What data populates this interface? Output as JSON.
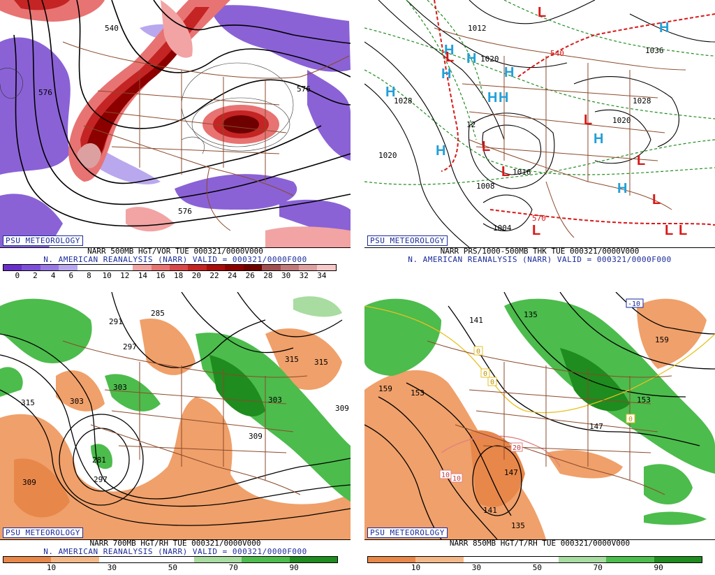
{
  "panels": [
    {
      "id": "vor500",
      "brand": "PSU METEOROLOGY",
      "title_line": "NARR 500MB HGT/VOR TUE 000321/0000V000",
      "valid_line": "N. AMERICAN REANALYSIS (NARR) VALID = 000321/0000F000",
      "contour_labels": [
        "540",
        "576",
        "576",
        "576"
      ],
      "colorbar": {
        "ticks": [
          "0",
          "2",
          "4",
          "6",
          "8",
          "10",
          "12",
          "14",
          "16",
          "18",
          "20",
          "22",
          "24",
          "26",
          "28",
          "30",
          "32",
          "34"
        ],
        "colors": [
          "#6a2fc8",
          "#7d4fd8",
          "#9a78e4",
          "#b9a8ee",
          "#ffffff",
          "#ffffff",
          "#ffffff",
          "#f2a3a3",
          "#e87373",
          "#d94848",
          "#c42424",
          "#a80c0c",
          "#8c0000",
          "#6e0000",
          "#a05050",
          "#c07a7a",
          "#dca0a0",
          "#f6c8c8"
        ]
      }
    },
    {
      "id": "prs",
      "brand": "PSU METEOROLOGY",
      "title_line": "NARR PRS/1000-500MB THK TUE 000321/0000V000",
      "valid_line": "N. AMERICAN REANALYSIS (NARR) VALID = 000321/0000F000",
      "isobar_labels": [
        "1012",
        "1020",
        "1028",
        "1020",
        "1036",
        "1028",
        "1020",
        "1016",
        "1008",
        "1004",
        "540",
        "570",
        "12"
      ],
      "centers": [
        {
          "type": "H",
          "color": "#22a0d8"
        },
        {
          "type": "H",
          "color": "#22a0d8"
        },
        {
          "type": "H",
          "color": "#22a0d8"
        },
        {
          "type": "H",
          "color": "#22a0d8"
        },
        {
          "type": "H",
          "color": "#22a0d8"
        },
        {
          "type": "H",
          "color": "#22a0d8"
        },
        {
          "type": "H",
          "color": "#22a0d8"
        },
        {
          "type": "H",
          "color": "#22a0d8"
        },
        {
          "type": "H",
          "color": "#22a0d8"
        },
        {
          "type": "H",
          "color": "#22a0d8"
        },
        {
          "type": "H",
          "color": "#22a0d8"
        },
        {
          "type": "L",
          "color": "#d81818"
        },
        {
          "type": "L",
          "color": "#d81818"
        },
        {
          "type": "L",
          "color": "#d81818"
        },
        {
          "type": "L",
          "color": "#d81818"
        },
        {
          "type": "L",
          "color": "#d81818"
        },
        {
          "type": "L",
          "color": "#d81818"
        },
        {
          "type": "L",
          "color": "#d81818"
        },
        {
          "type": "L",
          "color": "#d81818"
        },
        {
          "type": "L",
          "color": "#d81818"
        },
        {
          "type": "L",
          "color": "#d81818"
        }
      ]
    },
    {
      "id": "rh700",
      "brand": "PSU METEOROLOGY",
      "title_line": "NARR 700MB HGT/RH TUE 000321/0000V000",
      "valid_line": "N. AMERICAN REANALYSIS (NARR) VALID = 000321/0000F000",
      "contour_labels": [
        "285",
        "291",
        "297",
        "303",
        "315",
        "303",
        "281",
        "297",
        "309",
        "315",
        "315",
        "309",
        "303",
        "309"
      ],
      "colorbar": {
        "ticks": [
          "10",
          "30",
          "50",
          "70",
          "90"
        ],
        "colors": [
          "#e8874a",
          "#f4b888",
          "#ffffff",
          "#ffffff",
          "#a8dca0",
          "#4cbc4c",
          "#1e8c1e"
        ]
      }
    },
    {
      "id": "rh850",
      "brand": "PSU METEOROLOGY",
      "title_line": "NARR 850MB HGT/T/RH TUE 000321/0000V000",
      "valid_line": "",
      "contour_labels": [
        "141",
        "135",
        "159",
        "153",
        "159",
        "147",
        "153",
        "147",
        "141",
        "135"
      ],
      "temp_labels": [
        "-10",
        "0",
        "0",
        "0",
        "0",
        "10",
        "10",
        "20"
      ],
      "colorbar": {
        "ticks": [
          "10",
          "30",
          "50",
          "70",
          "90"
        ],
        "colors": [
          "#e8874a",
          "#f4b888",
          "#ffffff",
          "#ffffff",
          "#a8dca0",
          "#4cbc4c",
          "#1e8c1e"
        ]
      }
    }
  ]
}
